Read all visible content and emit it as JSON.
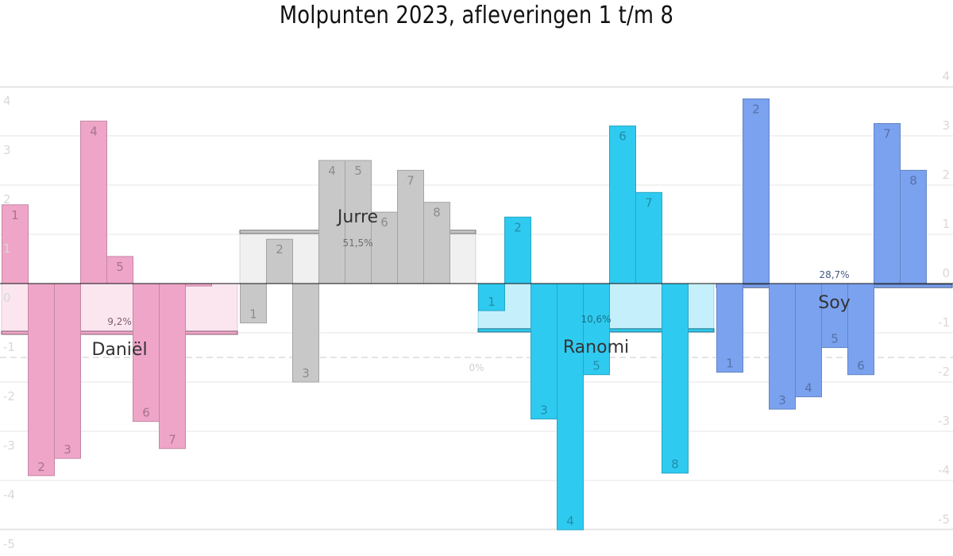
{
  "title": "Molpunten 2023, afleveringen 1 t/m 8",
  "colors": {
    "Daniël": "#efa5c8",
    "Jurre": "#c8c8c8",
    "Ranomi": "#2fcaf0",
    "Soy": "#7ba2ef"
  },
  "chart_data": {
    "type": "bar",
    "ylim": [
      -5,
      4
    ],
    "left_ticks": [
      "4",
      "3",
      "2",
      "1",
      "0",
      "-1",
      "-2",
      "-3",
      "-4",
      "-5"
    ],
    "right_ticks": [
      "4",
      "3",
      "2",
      "1",
      "0",
      "-1",
      "-2",
      "-3",
      "-4",
      "-5"
    ],
    "dashed_line_value": -1.5,
    "groups": [
      {
        "name": "Daniël",
        "percent": "9,2%",
        "average": -1.0,
        "categories": [
          "1",
          "2",
          "3",
          "4",
          "5",
          "6",
          "7",
          "8"
        ],
        "values": [
          1.6,
          -3.9,
          -3.55,
          3.3,
          0.55,
          -2.8,
          -3.35,
          -0.05
        ]
      },
      {
        "name": "Jurre",
        "percent": "51,5%",
        "average": 1.05,
        "categories": [
          "1",
          "2",
          "3",
          "4",
          "5",
          "6",
          "7",
          "8"
        ],
        "values": [
          -0.8,
          0.9,
          -2.0,
          2.5,
          2.5,
          1.45,
          2.3,
          1.65
        ]
      },
      {
        "name": "Ranomi",
        "percent": "10,6%",
        "average": -0.95,
        "categories": [
          "1",
          "2",
          "3",
          "4",
          "5",
          "6",
          "7",
          "8"
        ],
        "values": [
          -0.55,
          1.35,
          -2.75,
          -5.0,
          -1.85,
          3.2,
          1.85,
          -3.85
        ]
      },
      {
        "name": "Soy",
        "percent": "28,7%",
        "average": -0.05,
        "categories": [
          "1",
          "2",
          "3",
          "4",
          "5",
          "6",
          "7",
          "8"
        ],
        "values": [
          -1.8,
          3.75,
          -2.55,
          -2.3,
          -1.3,
          -1.85,
          3.25,
          2.3
        ]
      }
    ],
    "zero_group_percent": "0%"
  }
}
